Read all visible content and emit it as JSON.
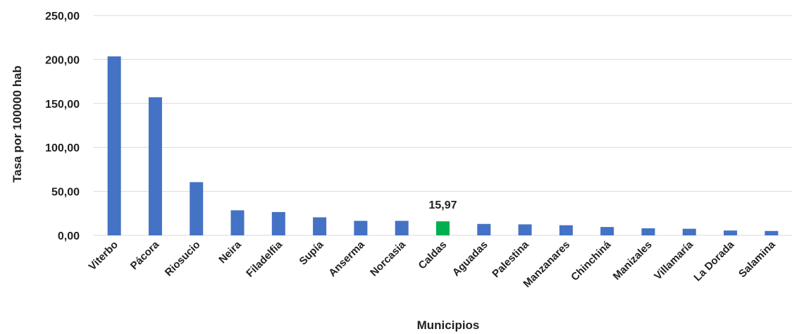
{
  "chart_data": {
    "type": "bar",
    "title": "",
    "xlabel": "Municipios",
    "ylabel": "Tasa por 100000 hab",
    "ylim": [
      0,
      250
    ],
    "yticks": [
      0,
      50,
      100,
      150,
      200,
      250
    ],
    "ytick_labels": [
      "0,00",
      "50,00",
      "100,00",
      "150,00",
      "200,00",
      "250,00"
    ],
    "grid": true,
    "legend": "none",
    "categories": [
      "Viterbo",
      "Pácora",
      "Riosucio",
      "Neira",
      "Filadelfia",
      "Supía",
      "Anserma",
      "Norcasia",
      "Caldas",
      "Aguadas",
      "Palestina",
      "Manzanares",
      "Chinchiná",
      "Manizales",
      "Villamaría",
      "La Dorada",
      "Salamina"
    ],
    "values": [
      203.5,
      157.0,
      60.5,
      28.5,
      26.5,
      20.5,
      16.5,
      16.5,
      15.97,
      13.0,
      12.5,
      11.5,
      9.5,
      8.0,
      7.5,
      5.5,
      5.0
    ],
    "highlight": {
      "category": "Caldas",
      "label": "15,97"
    },
    "colors": {
      "bar": "#4472C4",
      "highlight": "#00B050",
      "grid": "#D9D9D9"
    }
  }
}
